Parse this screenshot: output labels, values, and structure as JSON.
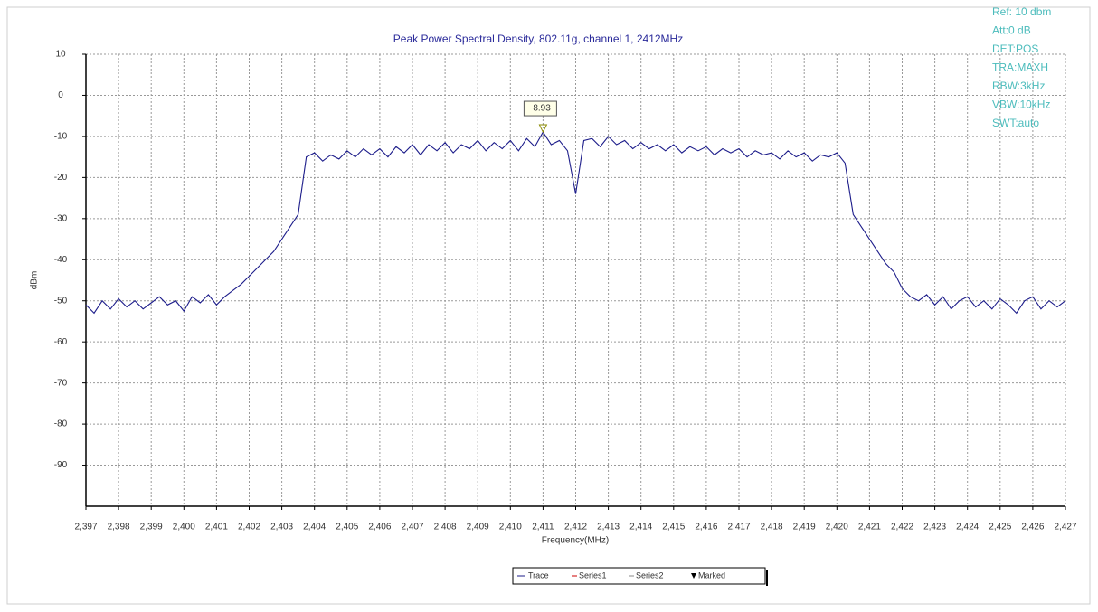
{
  "chart_data": {
    "type": "line",
    "title": "Peak Power Spectral Density, 802.11g, channel 1, 2412MHz",
    "x_label": "Frequency(MHz)",
    "y_label": "dBm",
    "xlim": [
      2.397,
      2.427
    ],
    "ylim": [
      -100,
      10
    ],
    "xticks": [
      {
        "value": 2.397,
        "label": "2,397"
      },
      {
        "value": 2.398,
        "label": "2,398"
      },
      {
        "value": 2.399,
        "label": "2,399"
      },
      {
        "value": 2.4,
        "label": "2,400"
      },
      {
        "value": 2.401,
        "label": "2,401"
      },
      {
        "value": 2.402,
        "label": "2,402"
      },
      {
        "value": 2.403,
        "label": "2,403"
      },
      {
        "value": 2.404,
        "label": "2,404"
      },
      {
        "value": 2.405,
        "label": "2,405"
      },
      {
        "value": 2.406,
        "label": "2,406"
      },
      {
        "value": 2.407,
        "label": "2,407"
      },
      {
        "value": 2.408,
        "label": "2,408"
      },
      {
        "value": 2.409,
        "label": "2,409"
      },
      {
        "value": 2.41,
        "label": "2,410"
      },
      {
        "value": 2.411,
        "label": "2,411"
      },
      {
        "value": 2.412,
        "label": "2,412"
      },
      {
        "value": 2.413,
        "label": "2,413"
      },
      {
        "value": 2.414,
        "label": "2,414"
      },
      {
        "value": 2.415,
        "label": "2,415"
      },
      {
        "value": 2.416,
        "label": "2,416"
      },
      {
        "value": 2.417,
        "label": "2,417"
      },
      {
        "value": 2.418,
        "label": "2,418"
      },
      {
        "value": 2.419,
        "label": "2,419"
      },
      {
        "value": 2.42,
        "label": "2,420"
      },
      {
        "value": 2.421,
        "label": "2,421"
      },
      {
        "value": 2.422,
        "label": "2,422"
      },
      {
        "value": 2.423,
        "label": "2,423"
      },
      {
        "value": 2.424,
        "label": "2,424"
      },
      {
        "value": 2.425,
        "label": "2,425"
      },
      {
        "value": 2.426,
        "label": "2,426"
      },
      {
        "value": 2.427,
        "label": "2,427"
      }
    ],
    "yticks": [
      10,
      0,
      -10,
      -20,
      -30,
      -40,
      -50,
      -60,
      -70,
      -80,
      -90
    ],
    "grid": true,
    "x": [
      2.397,
      2.39725,
      2.3975,
      2.39775,
      2.398,
      2.39825,
      2.3985,
      2.39875,
      2.399,
      2.39925,
      2.3995,
      2.39975,
      2.4,
      2.40025,
      2.4005,
      2.40075,
      2.401,
      2.40125,
      2.4015,
      2.40175,
      2.402,
      2.40225,
      2.4025,
      2.40275,
      2.403,
      2.40325,
      2.4035,
      2.40375,
      2.404,
      2.40425,
      2.4045,
      2.40475,
      2.405,
      2.40525,
      2.4055,
      2.40575,
      2.406,
      2.40625,
      2.4065,
      2.40675,
      2.407,
      2.40725,
      2.4075,
      2.40775,
      2.408,
      2.40825,
      2.4085,
      2.40875,
      2.409,
      2.40925,
      2.4095,
      2.40975,
      2.41,
      2.41025,
      2.4105,
      2.41075,
      2.411,
      2.41125,
      2.4115,
      2.41175,
      2.412,
      2.41225,
      2.4125,
      2.41275,
      2.413,
      2.41325,
      2.4135,
      2.41375,
      2.414,
      2.41425,
      2.4145,
      2.41475,
      2.415,
      2.41525,
      2.4155,
      2.41575,
      2.416,
      2.41625,
      2.4165,
      2.41675,
      2.417,
      2.41725,
      2.4175,
      2.41775,
      2.418,
      2.41825,
      2.4185,
      2.41875,
      2.419,
      2.41925,
      2.4195,
      2.41975,
      2.42,
      2.42025,
      2.4205,
      2.42075,
      2.421,
      2.42125,
      2.4215,
      2.42175,
      2.422,
      2.42225,
      2.4225,
      2.42275,
      2.423,
      2.42325,
      2.4235,
      2.42375,
      2.424,
      2.42425,
      2.4245,
      2.42475,
      2.425,
      2.42525,
      2.4255,
      2.42575,
      2.426,
      2.42625,
      2.4265,
      2.42675,
      2.427
    ],
    "series": [
      {
        "name": "Trace",
        "color": "#1c1c8a",
        "values": [
          -51,
          -53,
          -50,
          -52,
          -49.5,
          -51.5,
          -50,
          -52,
          -50.5,
          -49,
          -51,
          -50,
          -52.5,
          -49,
          -50.5,
          -48.5,
          -51,
          -49,
          -47.5,
          -46,
          -44,
          -42,
          -40,
          -38,
          -35,
          -32,
          -29,
          -15,
          -14,
          -16,
          -14.5,
          -15.5,
          -13.5,
          -15,
          -13,
          -14.5,
          -13,
          -15,
          -12.5,
          -14,
          -12,
          -14.5,
          -12,
          -13.5,
          -11.5,
          -14,
          -12,
          -13,
          -11,
          -13.5,
          -11.5,
          -13,
          -11,
          -13.5,
          -10.5,
          -12.5,
          -8.93,
          -12,
          -11,
          -13.5,
          -24,
          -11,
          -10.5,
          -12.5,
          -10,
          -12,
          -11,
          -13,
          -11.5,
          -13,
          -12,
          -13.5,
          -12,
          -14,
          -12.5,
          -13.5,
          -12.5,
          -14.5,
          -13,
          -14,
          -13,
          -15,
          -13.5,
          -14.5,
          -14,
          -15.5,
          -13.5,
          -15,
          -14,
          -16,
          -14.5,
          -15,
          -14,
          -16.5,
          -29,
          -32,
          -35,
          -38,
          -41,
          -43,
          -47,
          -49,
          -50,
          -48.5,
          -51,
          -49,
          -52,
          -50,
          -49,
          -51.5,
          -50,
          -52,
          -49.5,
          -51,
          -53,
          -50,
          -49,
          -52,
          -50,
          -51.5,
          -50
        ]
      }
    ],
    "marker": {
      "x": 2.411,
      "value": -8.93,
      "color": "#8a8a00"
    },
    "extra_legend": [
      "Series1",
      "Series2",
      "Marked"
    ],
    "annotation_color": "#4cbcbc",
    "annotations": [
      "Ref: 10 dbm",
      "Att:0 dB",
      "DET:POS",
      "TRA:MAXH",
      "RBW:3kHz",
      "VBW:10kHz",
      "SWT:auto"
    ]
  }
}
